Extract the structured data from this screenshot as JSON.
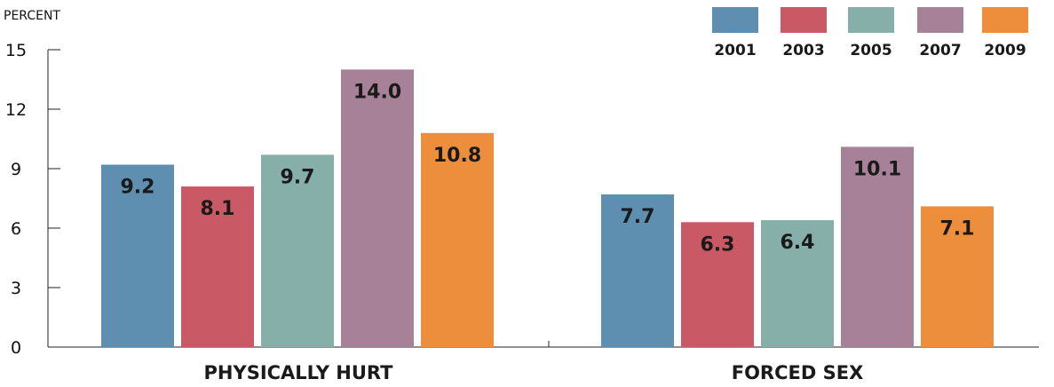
{
  "chart_data": {
    "type": "bar",
    "ylabel": "PERCENT",
    "xlabel": "",
    "ylim": [
      0,
      15
    ],
    "yticks": [
      0,
      3,
      6,
      9,
      12,
      15
    ],
    "grid": false,
    "legend_position": "top-right",
    "categories": [
      "PHYSICALLY HURT",
      "FORCED SEX"
    ],
    "series": [
      {
        "name": "2001",
        "color": "#5f8fb0",
        "values": [
          9.2,
          7.7
        ],
        "labels": [
          "9.2",
          "7.7"
        ]
      },
      {
        "name": "2003",
        "color": "#c95965",
        "values": [
          8.1,
          6.3
        ],
        "labels": [
          "8.1",
          "6.3"
        ]
      },
      {
        "name": "2005",
        "color": "#86afa9",
        "values": [
          9.7,
          6.4
        ],
        "labels": [
          "9.7",
          "6.4"
        ]
      },
      {
        "name": "2007",
        "color": "#a68197",
        "values": [
          14.0,
          10.1
        ],
        "labels": [
          "14.0",
          "10.1"
        ]
      },
      {
        "name": "2009",
        "color": "#ec8e3c",
        "values": [
          10.8,
          7.1
        ],
        "labels": [
          "10.8",
          "7.1"
        ]
      }
    ]
  }
}
